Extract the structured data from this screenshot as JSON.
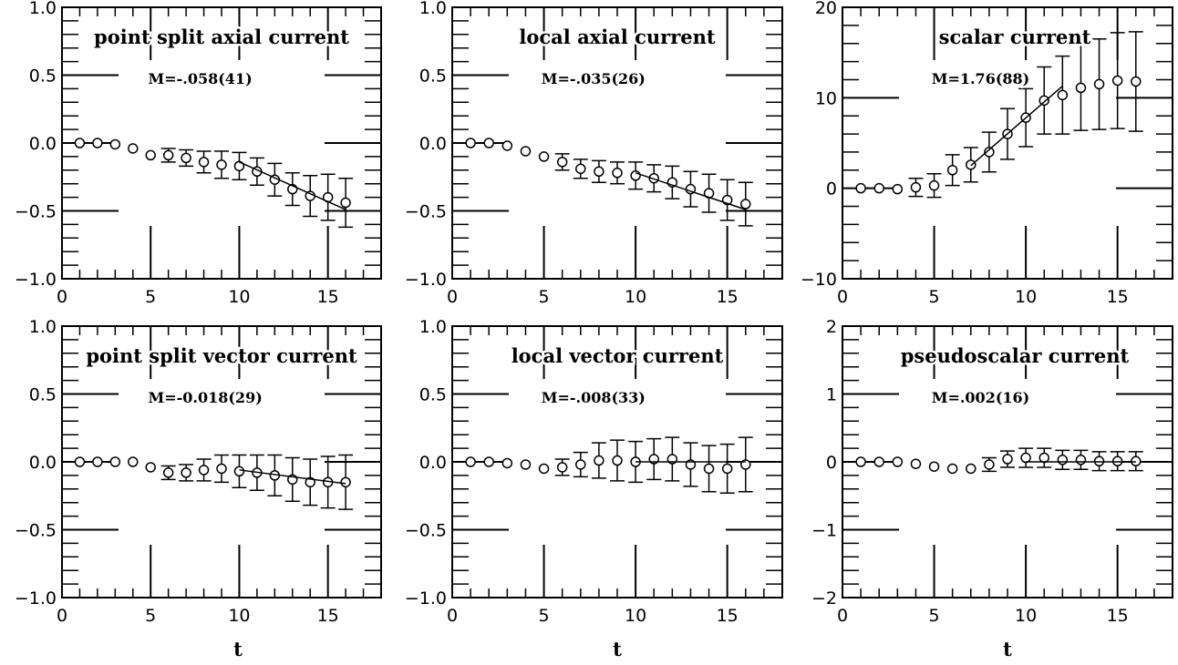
{
  "figure": {
    "xlabel": "t"
  },
  "chart_data": [
    {
      "type": "scatter",
      "title": "point split axial current",
      "annotation": "M=-.058(41)",
      "xlabel": "",
      "xlim": [
        0,
        18
      ],
      "ylim": [
        -1.0,
        1.0
      ],
      "xticks": [
        0,
        5,
        10,
        15
      ],
      "xtick_labels": [
        "0",
        "5",
        "10",
        "15"
      ],
      "yticks": [
        -1.0,
        -0.5,
        0.0,
        0.5,
        1.0
      ],
      "ytick_labels": [
        "−1.0",
        "−0.5",
        "0.0",
        "0.5",
        "1.0"
      ],
      "x": [
        1,
        2,
        3,
        4,
        5,
        6,
        7,
        8,
        9,
        10,
        11,
        12,
        13,
        14,
        15,
        16
      ],
      "y": [
        0.0,
        0.0,
        -0.01,
        -0.04,
        -0.09,
        -0.09,
        -0.11,
        -0.14,
        -0.16,
        -0.17,
        -0.21,
        -0.27,
        -0.34,
        -0.39,
        -0.4,
        -0.44
      ],
      "err": [
        0.01,
        0.01,
        0.02,
        0.03,
        0.04,
        0.05,
        0.06,
        0.08,
        0.1,
        0.1,
        0.1,
        0.12,
        0.12,
        0.15,
        0.17,
        0.18
      ],
      "fit": {
        "x": [
          10,
          16
        ],
        "y": [
          -0.14,
          -0.49
        ]
      }
    },
    {
      "type": "scatter",
      "title": "local axial current",
      "annotation": "M=-.035(26)",
      "xlabel": "",
      "xlim": [
        0,
        18
      ],
      "ylim": [
        -1.0,
        1.0
      ],
      "xticks": [
        0,
        5,
        10,
        15
      ],
      "xtick_labels": [
        "0",
        "5",
        "10",
        "15"
      ],
      "yticks": [
        -1.0,
        -0.5,
        0.0,
        0.5,
        1.0
      ],
      "ytick_labels": [
        "−1.0",
        "−0.5",
        "0.0",
        "0.5",
        "1.0"
      ],
      "x": [
        1,
        2,
        3,
        4,
        5,
        6,
        7,
        8,
        9,
        10,
        11,
        12,
        13,
        14,
        15,
        16
      ],
      "y": [
        0.0,
        0.0,
        -0.02,
        -0.06,
        -0.1,
        -0.14,
        -0.19,
        -0.21,
        -0.22,
        -0.24,
        -0.26,
        -0.29,
        -0.34,
        -0.37,
        -0.42,
        -0.45
      ],
      "err": [
        0.01,
        0.01,
        0.02,
        0.03,
        0.04,
        0.06,
        0.07,
        0.08,
        0.08,
        0.1,
        0.1,
        0.12,
        0.13,
        0.14,
        0.15,
        0.16
      ],
      "fit": {
        "x": [
          10,
          16
        ],
        "y": [
          -0.22,
          -0.49
        ]
      }
    },
    {
      "type": "scatter",
      "title": "scalar current",
      "annotation": "M=1.76(88)",
      "xlabel": "",
      "xlim": [
        0,
        18
      ],
      "ylim": [
        -10,
        20
      ],
      "xticks": [
        0,
        5,
        10,
        15
      ],
      "xtick_labels": [
        "0",
        "5",
        "10",
        "15"
      ],
      "yticks": [
        -10,
        0,
        10,
        20
      ],
      "ytick_labels": [
        "−10",
        "0",
        "10",
        "20"
      ],
      "x": [
        1,
        2,
        3,
        4,
        5,
        6,
        7,
        8,
        9,
        10,
        11,
        12,
        13,
        14,
        15,
        16
      ],
      "y": [
        0.0,
        0.0,
        -0.1,
        0.1,
        0.3,
        2.0,
        2.6,
        4.0,
        6.0,
        7.8,
        9.7,
        10.3,
        11.1,
        11.5,
        11.9,
        11.8
      ],
      "err": [
        0.2,
        0.3,
        0.5,
        1.0,
        1.3,
        1.7,
        1.9,
        2.2,
        2.8,
        3.2,
        3.7,
        4.3,
        4.7,
        5.0,
        5.3,
        5.5
      ],
      "fit": {
        "x": [
          7,
          12
        ],
        "y": [
          2.5,
          11.3
        ]
      }
    },
    {
      "type": "scatter",
      "title": "point split vector current",
      "annotation": "M=-0.018(29)",
      "xlabel": "t",
      "xlim": [
        0,
        18
      ],
      "ylim": [
        -1.0,
        1.0
      ],
      "xticks": [
        0,
        5,
        10,
        15
      ],
      "xtick_labels": [
        "0",
        "5",
        "10",
        "15"
      ],
      "yticks": [
        -1.0,
        -0.5,
        0.0,
        0.5,
        1.0
      ],
      "ytick_labels": [
        "−1.0",
        "−0.5",
        "0.0",
        "0.5",
        "1.0"
      ],
      "x": [
        1,
        2,
        3,
        4,
        5,
        6,
        7,
        8,
        9,
        10,
        11,
        12,
        13,
        14,
        15,
        16
      ],
      "y": [
        0.0,
        0.0,
        0.0,
        0.0,
        -0.04,
        -0.08,
        -0.08,
        -0.06,
        -0.05,
        -0.07,
        -0.08,
        -0.1,
        -0.13,
        -0.15,
        -0.15,
        -0.15
      ],
      "err": [
        0.01,
        0.01,
        0.01,
        0.02,
        0.03,
        0.05,
        0.06,
        0.08,
        0.1,
        0.12,
        0.13,
        0.15,
        0.16,
        0.17,
        0.19,
        0.2
      ],
      "fit": {
        "x": [
          10,
          16
        ],
        "y": [
          -0.06,
          -0.16
        ]
      }
    },
    {
      "type": "scatter",
      "title": "local vector current",
      "annotation": "M=-.008(33)",
      "xlabel": "t",
      "xlim": [
        0,
        18
      ],
      "ylim": [
        -1.0,
        1.0
      ],
      "xticks": [
        0,
        5,
        10,
        15
      ],
      "xtick_labels": [
        "0",
        "5",
        "10",
        "15"
      ],
      "yticks": [
        -1.0,
        -0.5,
        0.0,
        0.5,
        1.0
      ],
      "ytick_labels": [
        "−1.0",
        "−0.5",
        "0.0",
        "0.5",
        "1.0"
      ],
      "x": [
        1,
        2,
        3,
        4,
        5,
        6,
        7,
        8,
        9,
        10,
        11,
        12,
        13,
        14,
        15,
        16
      ],
      "y": [
        0.0,
        0.0,
        -0.01,
        -0.02,
        -0.05,
        -0.04,
        -0.02,
        0.01,
        0.01,
        0.0,
        0.02,
        0.02,
        -0.02,
        -0.05,
        -0.05,
        -0.02
      ],
      "err": [
        0.01,
        0.01,
        0.01,
        0.02,
        0.04,
        0.06,
        0.09,
        0.13,
        0.15,
        0.15,
        0.15,
        0.16,
        0.16,
        0.17,
        0.18,
        0.2
      ],
      "fit": {
        "x": [
          10,
          16
        ],
        "y": [
          0.0,
          0.0
        ]
      }
    },
    {
      "type": "scatter",
      "title": "pseudoscalar current",
      "annotation": "M=.002(16)",
      "xlabel": "t",
      "xlim": [
        0,
        18
      ],
      "ylim": [
        -2,
        2
      ],
      "xticks": [
        0,
        5,
        10,
        15
      ],
      "xtick_labels": [
        "0",
        "5",
        "10",
        "15"
      ],
      "yticks": [
        -2,
        -1,
        0,
        1,
        2
      ],
      "ytick_labels": [
        "−2",
        "−1",
        "0",
        "1",
        "2"
      ],
      "x": [
        1,
        2,
        3,
        4,
        5,
        6,
        7,
        8,
        9,
        10,
        11,
        12,
        13,
        14,
        15,
        16
      ],
      "y": [
        0.0,
        0.0,
        0.0,
        -0.03,
        -0.07,
        -0.1,
        -0.1,
        -0.04,
        0.04,
        0.06,
        0.06,
        0.03,
        0.03,
        0.01,
        0.01,
        0.01
      ],
      "err": [
        0.01,
        0.01,
        0.02,
        0.04,
        0.05,
        0.06,
        0.07,
        0.1,
        0.12,
        0.14,
        0.14,
        0.14,
        0.14,
        0.14,
        0.14,
        0.14
      ],
      "fit": {
        "x": [
          10,
          16
        ],
        "y": [
          0.0,
          0.0
        ]
      }
    }
  ]
}
